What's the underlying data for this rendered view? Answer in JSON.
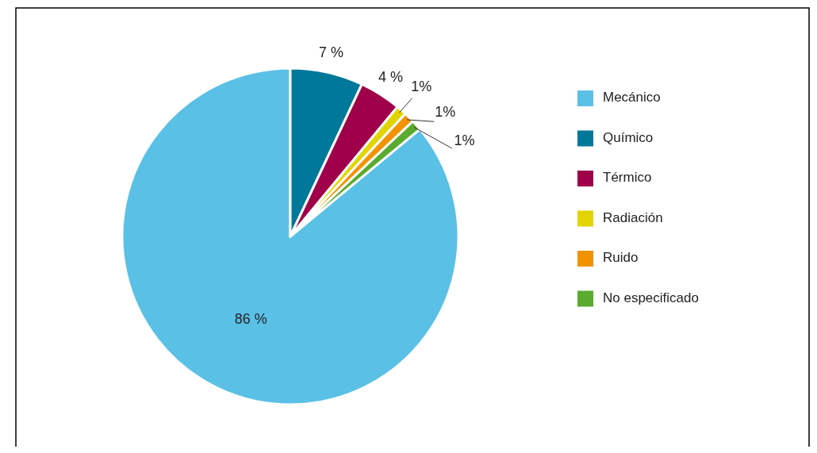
{
  "chart_data": {
    "type": "pie",
    "categories": [
      "Mecánico",
      "Químico",
      "Térmico",
      "Radiación",
      "Ruido",
      "No especificado"
    ],
    "values": [
      86,
      7,
      4,
      1,
      1,
      1
    ],
    "colors": [
      "#5bc0e6",
      "#00789a",
      "#a0004a",
      "#e2d400",
      "#f39200",
      "#5aab2e"
    ],
    "value_labels": [
      "86 %",
      "7 %",
      "4 %",
      "1%",
      "1%",
      "1%"
    ],
    "legend": "right"
  }
}
